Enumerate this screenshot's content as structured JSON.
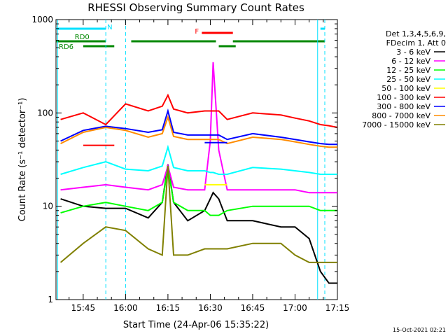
{
  "chart_data": {
    "type": "line",
    "title": "RHESSI Observing Summary Count Rates",
    "xlabel": "Start Time (24-Apr-06 15:35:22)",
    "ylabel": "Count Rate (s⁻¹ detector⁻¹)",
    "y_scale": "log",
    "ylim": [
      1,
      1000
    ],
    "xlim": [
      "15:35:22",
      "17:15:00"
    ],
    "x_ticks": [
      "15:45",
      "16:00",
      "16:15",
      "16:30",
      "16:45",
      "17:00",
      "17:15"
    ],
    "y_ticks": [
      "1",
      "10",
      "100",
      "1000"
    ],
    "grid": false,
    "legend_position": "right",
    "legend_header": [
      "Det 1,3,4,5,6,9,",
      "FDecim 1, Att 0"
    ],
    "footer_date": "15-Oct-2021 02:21",
    "flags": [
      {
        "label": "N",
        "color": "#00e0ff",
        "segments": [
          [
            "15:35",
            "15:53"
          ],
          [
            "17:09",
            "17:15"
          ]
        ]
      },
      {
        "label": "F",
        "color": "#ff0000",
        "segments": [
          [
            "16:27",
            "16:38"
          ]
        ]
      },
      {
        "label": "RD0",
        "color": "#008800",
        "segments": [
          [
            "15:35",
            "15:53"
          ],
          [
            "16:02",
            "16:32"
          ],
          [
            "16:38",
            "17:15"
          ]
        ]
      },
      {
        "label": "RD6",
        "color": "#008800",
        "segments": [
          [
            "15:45",
            "15:56"
          ],
          [
            "16:33",
            "16:39"
          ]
        ]
      }
    ],
    "night_lines_dashed": [
      "15:53",
      "16:00",
      "17:15"
    ],
    "night_lines_solid": [
      "15:36",
      "17:08"
    ],
    "series": [
      {
        "name": "3 - 6 keV",
        "color": "#000000",
        "x": [
          "15:37",
          "15:45",
          "15:53",
          "16:00",
          "16:08",
          "16:13",
          "16:15",
          "16:17",
          "16:22",
          "16:28",
          "16:30",
          "16:31",
          "16:33",
          "16:36",
          "16:45",
          "16:55",
          "17:00",
          "17:05",
          "17:09",
          "17:12",
          "17:15"
        ],
        "y": [
          12,
          10,
          9.5,
          9.5,
          7.5,
          11,
          28,
          11,
          7,
          9,
          12,
          14,
          12,
          7,
          7,
          6,
          6,
          4.5,
          2,
          1.5,
          1.5
        ]
      },
      {
        "name": "6 - 12 keV",
        "color": "#ff00ff",
        "x": [
          "15:37",
          "15:45",
          "15:53",
          "16:00",
          "16:08",
          "16:13",
          "16:15",
          "16:17",
          "16:22",
          "16:28",
          "16:30",
          "16:31",
          "16:33",
          "16:36",
          "16:45",
          "16:55",
          "17:00",
          "17:05",
          "17:09",
          "17:12",
          "17:15"
        ],
        "y": [
          15,
          16,
          17,
          16,
          15,
          17,
          27,
          16,
          15,
          15,
          50,
          350,
          40,
          15,
          15,
          15,
          15,
          14,
          14,
          14,
          14
        ]
      },
      {
        "name": "12 - 25 keV",
        "color": "#00ff00",
        "x": [
          "15:37",
          "15:45",
          "15:53",
          "16:00",
          "16:08",
          "16:13",
          "16:15",
          "16:17",
          "16:22",
          "16:28",
          "16:30",
          "16:31",
          "16:33",
          "16:36",
          "16:45",
          "16:55",
          "17:00",
          "17:05",
          "17:09",
          "17:12",
          "17:15"
        ],
        "y": [
          8.5,
          10,
          11,
          10,
          9,
          11,
          26,
          11,
          9,
          9,
          8,
          8,
          8,
          9,
          10,
          10,
          10,
          10,
          9,
          9,
          9
        ]
      },
      {
        "name": "25 - 50 keV",
        "color": "#00ffff",
        "x": [
          "15:37",
          "15:45",
          "15:53",
          "16:00",
          "16:08",
          "16:13",
          "16:15",
          "16:17",
          "16:22",
          "16:28",
          "16:30",
          "16:31",
          "16:33",
          "16:36",
          "16:45",
          "16:55",
          "17:00",
          "17:05",
          "17:09",
          "17:12",
          "17:15"
        ],
        "y": [
          22,
          26,
          30,
          25,
          24,
          27,
          43,
          26,
          24,
          24,
          23,
          23,
          22,
          22,
          26,
          25,
          24,
          23,
          22,
          22,
          22
        ]
      },
      {
        "name": "50 - 100 keV",
        "color": "#ffff00",
        "x": [
          "16:28",
          "16:30",
          "16:32",
          "16:34",
          "16:36"
        ],
        "y": [
          17,
          17,
          17,
          17,
          17
        ]
      },
      {
        "name": "100 - 300 keV",
        "color": "#ff0000",
        "x": [
          "15:37",
          "15:45",
          "15:53",
          "16:00",
          "16:08",
          "16:13",
          "16:15",
          "16:17",
          "16:22",
          "16:28",
          "16:30",
          "16:31",
          "16:33",
          "16:36",
          "16:45",
          "16:55",
          "17:00",
          "17:05",
          "17:09",
          "17:12",
          "17:15"
        ],
        "y": [
          85,
          100,
          75,
          125,
          105,
          118,
          155,
          110,
          100,
          105,
          105,
          105,
          105,
          85,
          100,
          95,
          88,
          82,
          75,
          73,
          70
        ]
      },
      {
        "name": "300 - 800 keV",
        "color": "#0000ff",
        "x": [
          "15:37",
          "15:45",
          "15:53",
          "16:00",
          "16:08",
          "16:13",
          "16:15",
          "16:17",
          "16:22",
          "16:28",
          "16:30",
          "16:31",
          "16:33",
          "16:36",
          "16:45",
          "16:55",
          "17:00",
          "17:05",
          "17:09",
          "17:12",
          "17:15"
        ],
        "y": [
          50,
          65,
          72,
          68,
          62,
          66,
          105,
          62,
          58,
          58,
          58,
          58,
          58,
          52,
          60,
          55,
          52,
          49,
          47,
          46,
          46
        ]
      },
      {
        "name": "800 - 7000 keV",
        "color": "#ff8c00",
        "x": [
          "15:37",
          "15:45",
          "15:53",
          "16:00",
          "16:08",
          "16:13",
          "16:15",
          "16:17",
          "16:22",
          "16:28",
          "16:30",
          "16:31",
          "16:33",
          "16:36",
          "16:45",
          "16:55",
          "17:00",
          "17:05",
          "17:09",
          "17:12",
          "17:15"
        ],
        "y": [
          47,
          62,
          70,
          65,
          55,
          60,
          90,
          56,
          52,
          52,
          52,
          52,
          52,
          47,
          55,
          52,
          49,
          46,
          44,
          43,
          43
        ]
      },
      {
        "name": "7000 - 15000 keV",
        "color": "#808000",
        "x": [
          "15:37",
          "15:45",
          "15:53",
          "16:00",
          "16:08",
          "16:13",
          "16:15",
          "16:17",
          "16:22",
          "16:28",
          "16:30",
          "16:31",
          "16:33",
          "16:36",
          "16:45",
          "16:55",
          "17:00",
          "17:05",
          "17:09",
          "17:12",
          "17:15"
        ],
        "y": [
          2.5,
          4,
          6,
          5.5,
          3.5,
          3,
          27,
          3,
          3,
          3.5,
          3.5,
          3.5,
          3.5,
          3.5,
          4,
          4,
          3,
          2.5,
          2.5,
          2.5,
          2.5
        ]
      },
      {
        "name": "blue-low-attenuator",
        "color": "#0000ff",
        "x": [
          "16:28",
          "16:36"
        ],
        "y": [
          48,
          48
        ],
        "hidden_in_legend": true
      },
      {
        "name": "red-low-attenuator",
        "color": "#ff0000",
        "x": [
          "15:45",
          "15:56"
        ],
        "y": [
          45,
          45
        ],
        "hidden_in_legend": true
      }
    ]
  }
}
